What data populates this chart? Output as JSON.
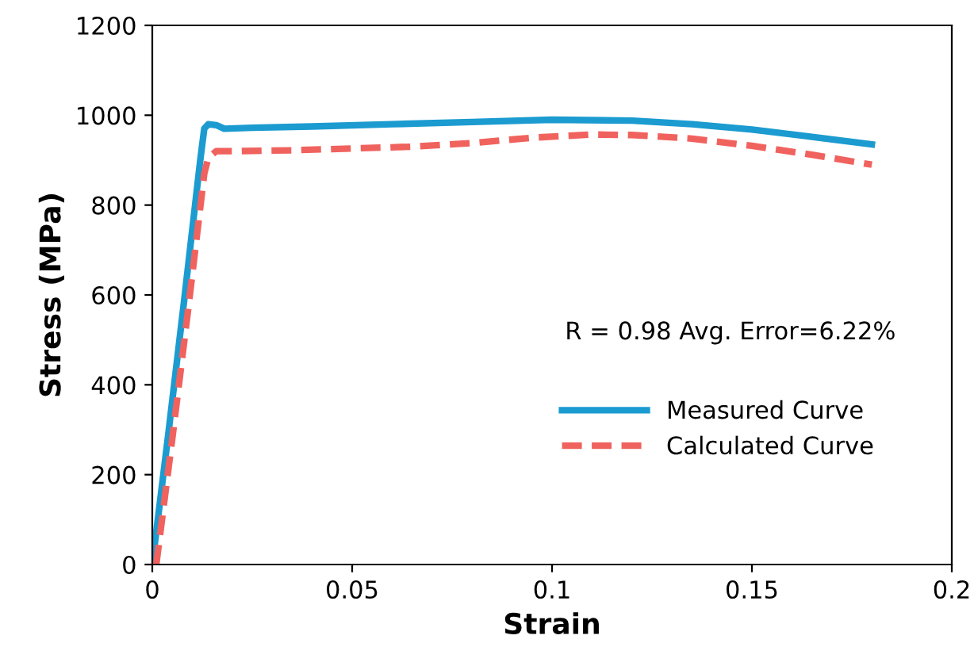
{
  "chart_data": {
    "type": "line",
    "xlabel": "Strain",
    "ylabel": "Stress (MPa)",
    "xlim": [
      0,
      0.2
    ],
    "ylim": [
      0,
      1200
    ],
    "xticks": [
      0,
      0.05,
      0.1,
      0.15,
      0.2
    ],
    "yticks": [
      0,
      200,
      400,
      600,
      800,
      1000,
      1200
    ],
    "grid": false,
    "legend": "right",
    "annotations": [
      "R = 0.98 Avg. Error=6.22%"
    ],
    "series": [
      {
        "name": "Measured Curve",
        "color": "#1b9bd0",
        "line_style": "solid",
        "x": [
          0,
          0.004,
          0.008,
          0.012,
          0.013,
          0.014,
          0.016,
          0.018,
          0.025,
          0.04,
          0.06,
          0.08,
          0.1,
          0.12,
          0.135,
          0.15,
          0.165,
          0.18
        ],
        "values": [
          0,
          290,
          590,
          900,
          970,
          980,
          978,
          970,
          972,
          975,
          980,
          985,
          990,
          988,
          980,
          968,
          952,
          935
        ]
      },
      {
        "name": "Calculated Curve",
        "color": "#f0625e",
        "line_style": "dashed",
        "x": [
          0.001,
          0.005,
          0.009,
          0.013,
          0.014,
          0.016,
          0.02,
          0.035,
          0.05,
          0.065,
          0.08,
          0.095,
          0.11,
          0.12,
          0.135,
          0.15,
          0.165,
          0.18
        ],
        "values": [
          0,
          280,
          570,
          870,
          905,
          920,
          920,
          922,
          926,
          930,
          938,
          950,
          957,
          956,
          948,
          932,
          912,
          890
        ]
      }
    ]
  }
}
